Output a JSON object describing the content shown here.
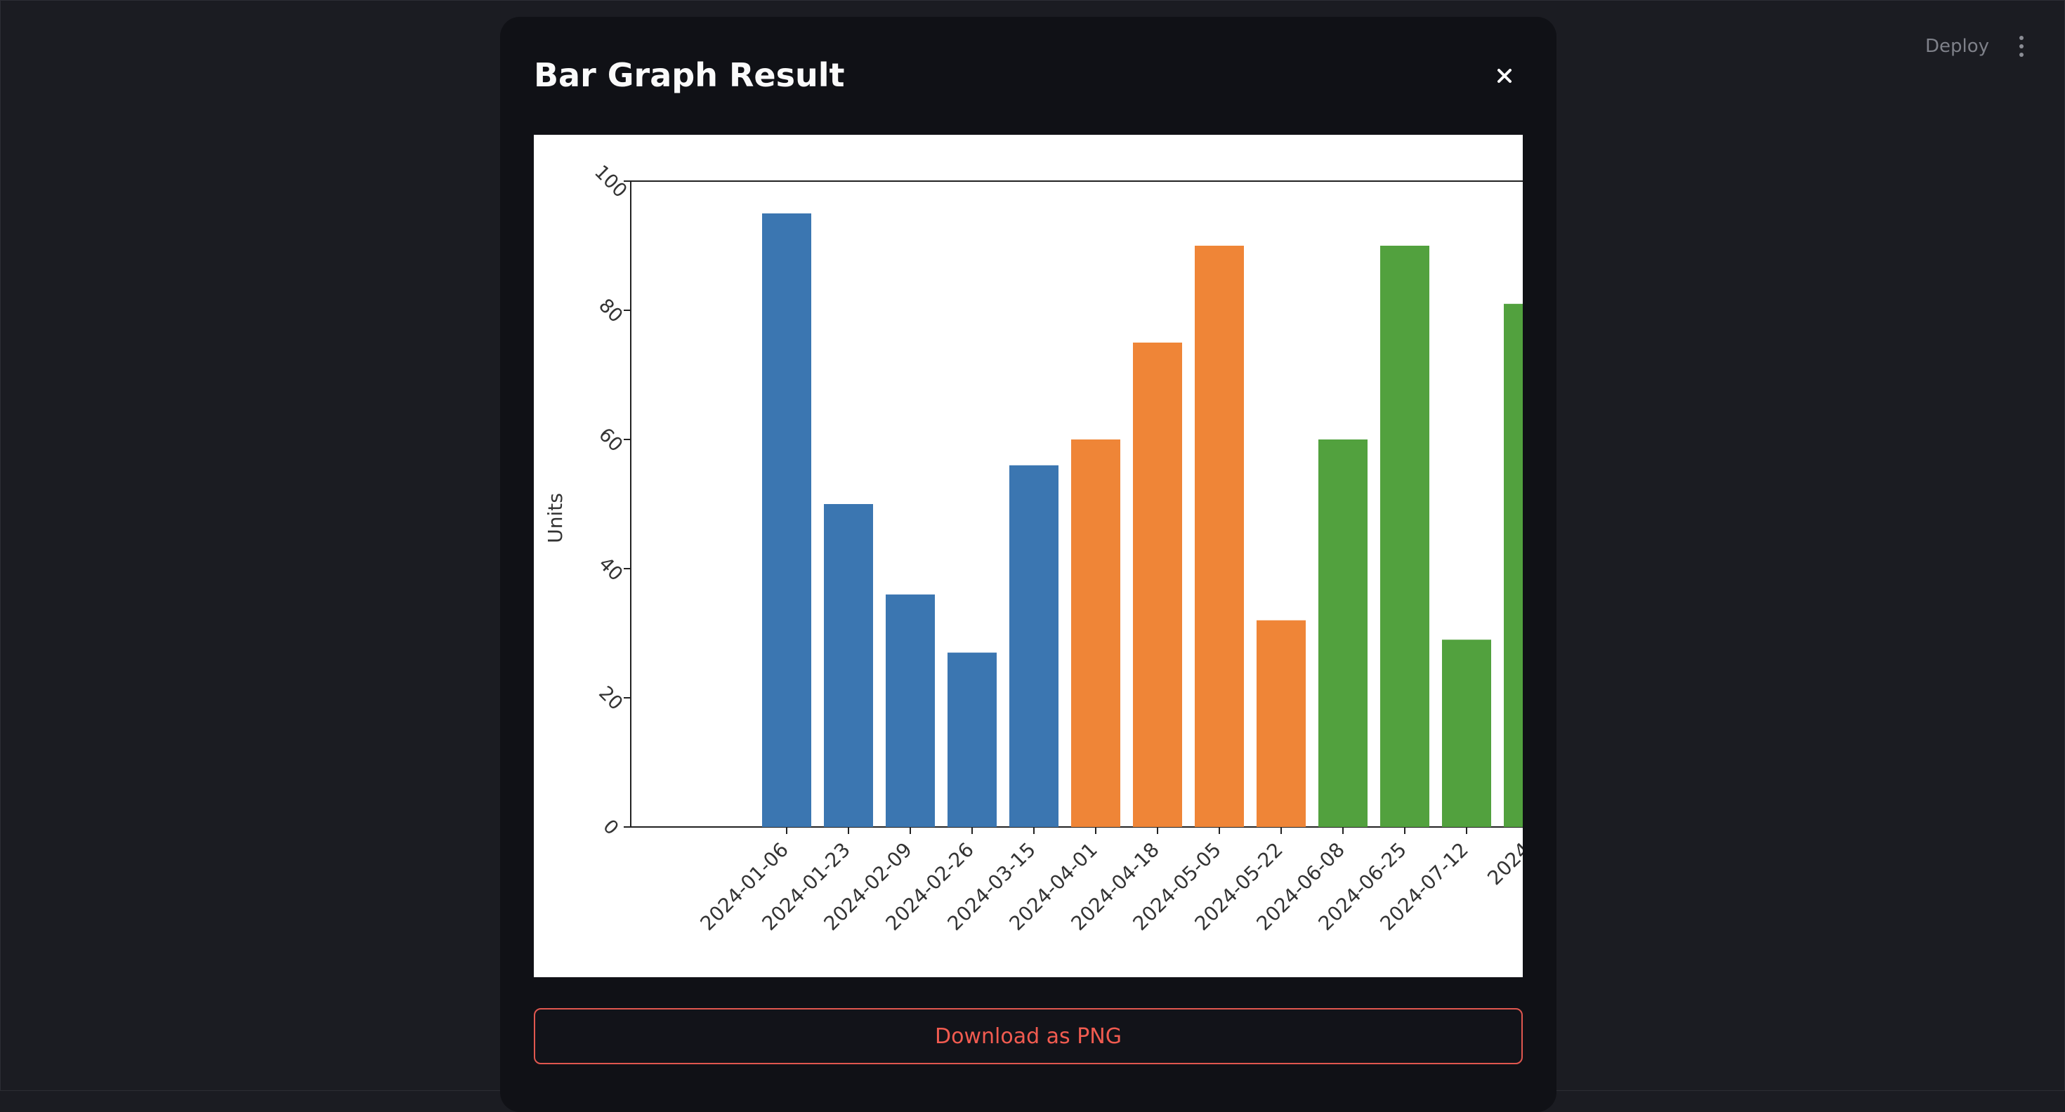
{
  "header": {
    "deploy_label": "Deploy",
    "menu_icon": "kebab-menu-icon"
  },
  "modal": {
    "title": "Bar Graph Result",
    "close_icon": "close-icon",
    "download_label": "Download as PNG"
  },
  "colors": {
    "accent": "#f15b50",
    "series_blue": "#3b76b1",
    "series_orange": "#ef8537",
    "series_green": "#52a13e"
  },
  "chart_data": {
    "type": "bar",
    "ylabel": "Units",
    "ylim": [
      0,
      100
    ],
    "yticks": [
      "0",
      "20",
      "40",
      "60",
      "80",
      "100"
    ],
    "grid": false,
    "categories": [
      "2024-01-06",
      "2024-01-23",
      "2024-02-09",
      "2024-02-26",
      "2024-03-15",
      "2024-04-01",
      "2024-04-18",
      "2024-05-05",
      "2024-05-22",
      "2024-06-08",
      "2024-06-25",
      "2024-07-12",
      "2024"
    ],
    "values": [
      95,
      50,
      36,
      27,
      56,
      60,
      75,
      90,
      32,
      60,
      90,
      29,
      81
    ],
    "bar_colors": [
      "#3b76b1",
      "#3b76b1",
      "#3b76b1",
      "#3b76b1",
      "#3b76b1",
      "#ef8537",
      "#ef8537",
      "#ef8537",
      "#ef8537",
      "#52a13e",
      "#52a13e",
      "#52a13e",
      "#52a13e"
    ]
  }
}
